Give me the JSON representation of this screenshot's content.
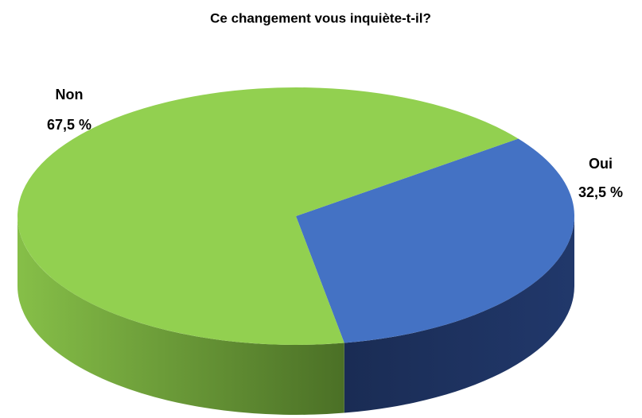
{
  "chart_data": {
    "type": "pie3d",
    "title": "Ce changement vous inquiète-t-il?",
    "categories": [
      "Oui",
      "Non"
    ],
    "values": [
      32.5,
      67.5
    ],
    "value_labels": [
      "32,5 %",
      "67,5 %"
    ],
    "colors": [
      "#4472c4",
      "#92d050"
    ],
    "legend": false
  }
}
